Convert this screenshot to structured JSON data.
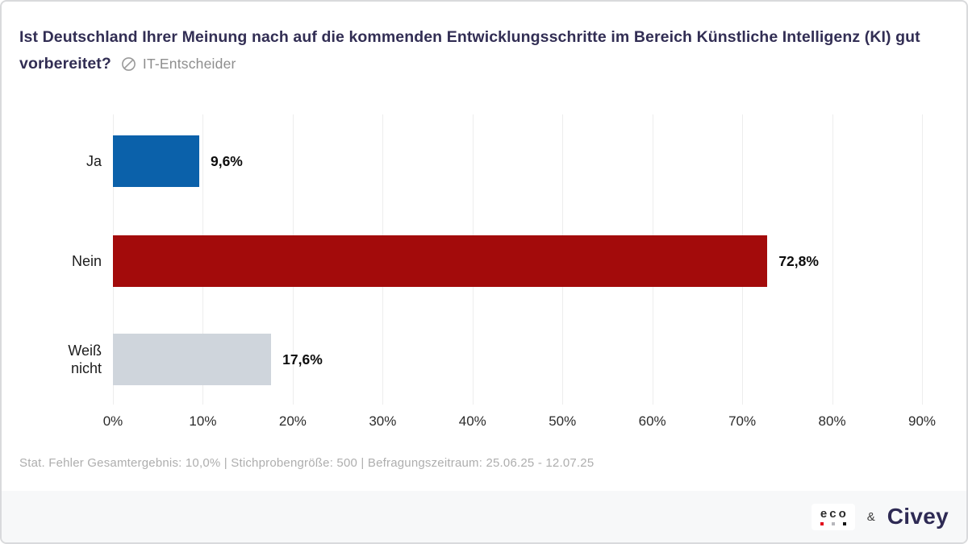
{
  "header": {
    "title_line1": "Ist Deutschland Ihrer Meinung nach auf die kommenden Entwicklungsschritte im Bereich Künstliche Intelligenz (KI) gut",
    "title_line2": "vorbereitet?",
    "badge": {
      "icon": "circle-slash-icon",
      "label": "IT-Entscheider"
    }
  },
  "chart_data": {
    "type": "bar",
    "orientation": "horizontal",
    "title": "Ist Deutschland Ihrer Meinung nach auf die kommenden Entwicklungsschritte im Bereich Künstliche Intelligenz (KI) gut vorbereitet?",
    "categories": [
      "Ja",
      "Nein",
      "Weiß nicht"
    ],
    "slugs": [
      "ja",
      "nein",
      "weiss-nicht"
    ],
    "values": [
      9.6,
      72.8,
      17.6
    ],
    "value_labels": [
      "9,6%",
      "72,8%",
      "17,6%"
    ],
    "bar_colors": [
      "#0b61aa",
      "#a30b0b",
      "#cfd5dc"
    ],
    "x_ticks": [
      "0%",
      "10%",
      "20%",
      "30%",
      "40%",
      "50%",
      "60%",
      "70%",
      "80%",
      "90%"
    ],
    "x_tick_values": [
      0,
      10,
      20,
      30,
      40,
      50,
      60,
      70,
      80,
      90
    ],
    "xlim": [
      0,
      90
    ],
    "grid": true,
    "legend": "none"
  },
  "footer": {
    "stats": "Stat. Fehler Gesamtergebnis: 10,0% | Stichprobengröße: 500 | Befragungszeitraum: 25.06.25 - 12.07.25"
  },
  "branding": {
    "eco_label": "eco",
    "eco_dot_colors": [
      "#e2001a",
      "#b7b7bc",
      "#141414"
    ],
    "ampersand": "&",
    "civey_label": "Civey"
  }
}
